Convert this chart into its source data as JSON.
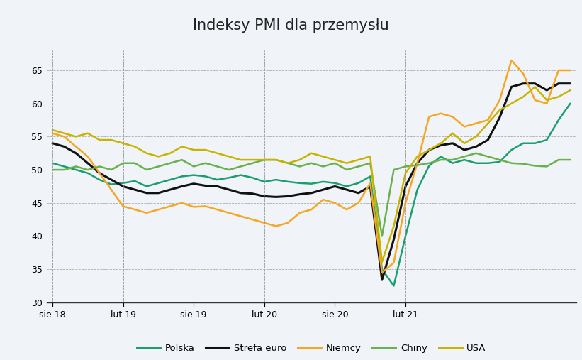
{
  "title": "Indeksy PMI dla przemysłu",
  "title_bg": "#d3dce6",
  "background_color": "#f0f4f8",
  "plot_bg": "#f0f4f8",
  "ylim": [
    30,
    68
  ],
  "yticks": [
    30,
    35,
    40,
    45,
    50,
    55,
    60,
    65
  ],
  "grid_color": "#999999",
  "series": {
    "Polska": {
      "color": "#1a9e6e",
      "linewidth": 1.8,
      "data": [
        51.0,
        50.5,
        50.0,
        49.5,
        48.5,
        47.8,
        48.0,
        48.3,
        47.5,
        48.0,
        48.5,
        49.0,
        49.2,
        49.0,
        48.5,
        48.8,
        49.2,
        48.8,
        48.2,
        48.5,
        48.2,
        48.0,
        47.9,
        48.2,
        48.0,
        47.5,
        48.0,
        49.0,
        35.0,
        32.5,
        40.0,
        47.0,
        50.6,
        52.0,
        51.0,
        51.5,
        51.0,
        51.0,
        51.2,
        53.0,
        54.0,
        54.0,
        54.5,
        57.5,
        60.0
      ]
    },
    "Strefa euro": {
      "color": "#111111",
      "linewidth": 2.2,
      "data": [
        54.0,
        53.5,
        52.5,
        51.0,
        49.5,
        48.5,
        47.5,
        47.0,
        46.5,
        46.5,
        47.0,
        47.5,
        47.9,
        47.6,
        47.5,
        47.0,
        46.5,
        46.4,
        46.0,
        45.9,
        46.0,
        46.3,
        46.5,
        47.0,
        47.5,
        47.0,
        46.5,
        47.5,
        33.4,
        39.5,
        47.5,
        51.0,
        53.0,
        53.7,
        54.0,
        53.0,
        53.5,
        54.5,
        57.9,
        62.5,
        63.0,
        63.0,
        62.0,
        63.0,
        63.0
      ]
    },
    "Niemcy": {
      "color": "#f5a623",
      "linewidth": 1.8,
      "data": [
        55.5,
        55.0,
        53.5,
        52.0,
        49.5,
        47.0,
        44.5,
        44.0,
        43.5,
        44.0,
        44.5,
        45.0,
        44.4,
        44.5,
        44.0,
        43.5,
        43.0,
        42.5,
        42.0,
        41.5,
        42.0,
        43.5,
        44.0,
        45.5,
        45.0,
        44.0,
        45.0,
        48.0,
        34.5,
        36.0,
        45.0,
        51.0,
        58.0,
        58.5,
        58.0,
        56.5,
        57.0,
        57.5,
        60.5,
        66.5,
        64.5,
        60.5,
        60.0,
        65.0,
        65.0
      ]
    },
    "Chiny": {
      "color": "#6ab04c",
      "linewidth": 1.8,
      "data": [
        50.0,
        50.0,
        50.5,
        50.0,
        50.5,
        50.0,
        51.0,
        51.0,
        50.0,
        50.5,
        51.0,
        51.5,
        50.5,
        51.0,
        50.5,
        50.0,
        50.5,
        51.0,
        51.5,
        51.5,
        51.0,
        50.5,
        51.0,
        50.5,
        51.0,
        50.0,
        50.5,
        51.0,
        40.0,
        50.0,
        50.5,
        50.7,
        51.0,
        51.5,
        51.5,
        52.0,
        52.5,
        52.0,
        51.5,
        51.0,
        50.9,
        50.6,
        50.5,
        51.5,
        51.5
      ]
    },
    "USA": {
      "color": "#c8b400",
      "linewidth": 1.8,
      "data": [
        56.0,
        55.5,
        55.0,
        55.5,
        54.5,
        54.5,
        54.0,
        53.5,
        52.5,
        52.0,
        52.5,
        53.5,
        53.0,
        53.0,
        52.5,
        52.0,
        51.5,
        51.5,
        51.5,
        51.5,
        51.0,
        51.5,
        52.5,
        52.0,
        51.5,
        51.0,
        51.5,
        52.0,
        36.1,
        41.5,
        49.5,
        52.0,
        53.0,
        54.0,
        55.5,
        54.0,
        55.0,
        57.0,
        59.0,
        60.0,
        61.0,
        62.5,
        60.5,
        61.0,
        62.0
      ]
    }
  },
  "n_points": 45,
  "xtick_labels": [
    "sie 18",
    "lut 19",
    "sie 19",
    "lut 20",
    "sie 20",
    "lut 21"
  ],
  "xtick_positions": [
    0,
    6,
    12,
    18,
    24,
    30
  ],
  "legend_order": [
    "Polska",
    "Strefa euro",
    "Niemcy",
    "Chiny",
    "USA"
  ]
}
